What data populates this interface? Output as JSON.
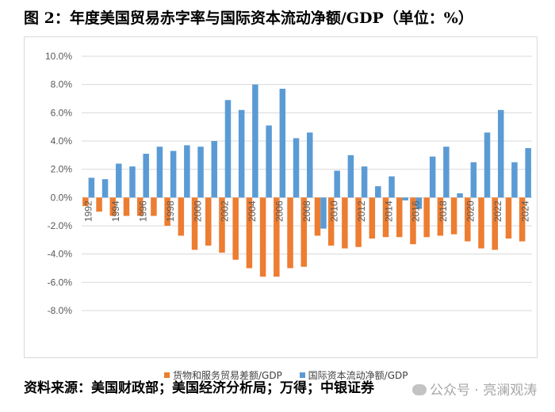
{
  "title": "图 2：年度美国贸易赤字率与国际资本流动净额/GDP（单位：%）",
  "source": "资料来源：美国财政部；美国经济分析局；万得；中银证券",
  "watermark": "公众号 · 亮澜观涛",
  "colors": {
    "series1": "#ED7D31",
    "series2": "#5B9BD5",
    "grid": "#d9d9d9",
    "axis_text": "#595959"
  },
  "chart_data": {
    "type": "bar",
    "title": "年度美国贸易赤字率与国际资本流动净额/GDP",
    "xlabel": "",
    "ylabel": "",
    "ylim": [
      -8,
      10
    ],
    "y_ticks": [
      "10.0%",
      "8.0%",
      "6.0%",
      "4.0%",
      "2.0%",
      "0.0%",
      "-2.0%",
      "-4.0%",
      "-6.0%",
      "-8.0%"
    ],
    "y_tick_values": [
      10,
      8,
      6,
      4,
      2,
      0,
      -2,
      -4,
      -6,
      -8
    ],
    "grid": true,
    "legend_position": "bottom",
    "categories": [
      "1992",
      "1993",
      "1994",
      "1995",
      "1996",
      "1997",
      "1998",
      "1999",
      "2000",
      "2001",
      "2002",
      "2003",
      "2004",
      "2005",
      "2006",
      "2007",
      "2008",
      "2009",
      "2010",
      "2011",
      "2012",
      "2013",
      "2014",
      "2015",
      "2016",
      "2017",
      "2018",
      "2019",
      "2020",
      "2021",
      "2022",
      "2023",
      "2024"
    ],
    "x_tick_labels": [
      "1992",
      "1994",
      "1996",
      "1998",
      "2000",
      "2002",
      "2004",
      "2006",
      "2008",
      "2010",
      "2012",
      "2014",
      "2016",
      "2018",
      "2020",
      "2022",
      "2024"
    ],
    "series": [
      {
        "name": "货物和服务贸易差额/GDP",
        "values": [
          -0.6,
          -1.0,
          -1.3,
          -1.3,
          -1.3,
          -1.3,
          -2.0,
          -2.7,
          -3.7,
          -3.4,
          -3.9,
          -4.4,
          -5.0,
          -5.6,
          -5.6,
          -5.0,
          -4.9,
          -2.7,
          -3.4,
          -3.6,
          -3.5,
          -2.9,
          -2.8,
          -2.8,
          -3.3,
          -2.8,
          -2.7,
          -2.6,
          -3.1,
          -3.6,
          -3.7,
          -2.9,
          -3.1
        ]
      },
      {
        "name": "国际资本流动净额/GDP",
        "values": [
          1.4,
          1.3,
          2.4,
          2.2,
          3.1,
          3.6,
          3.3,
          3.7,
          3.6,
          4.0,
          6.9,
          6.2,
          8.0,
          5.1,
          7.7,
          4.2,
          4.6,
          -2.2,
          1.9,
          3.0,
          2.2,
          0.8,
          1.5,
          -0.2,
          -0.8,
          2.9,
          3.6,
          0.3,
          2.5,
          4.6,
          6.2,
          2.5,
          3.5
        ]
      }
    ]
  }
}
